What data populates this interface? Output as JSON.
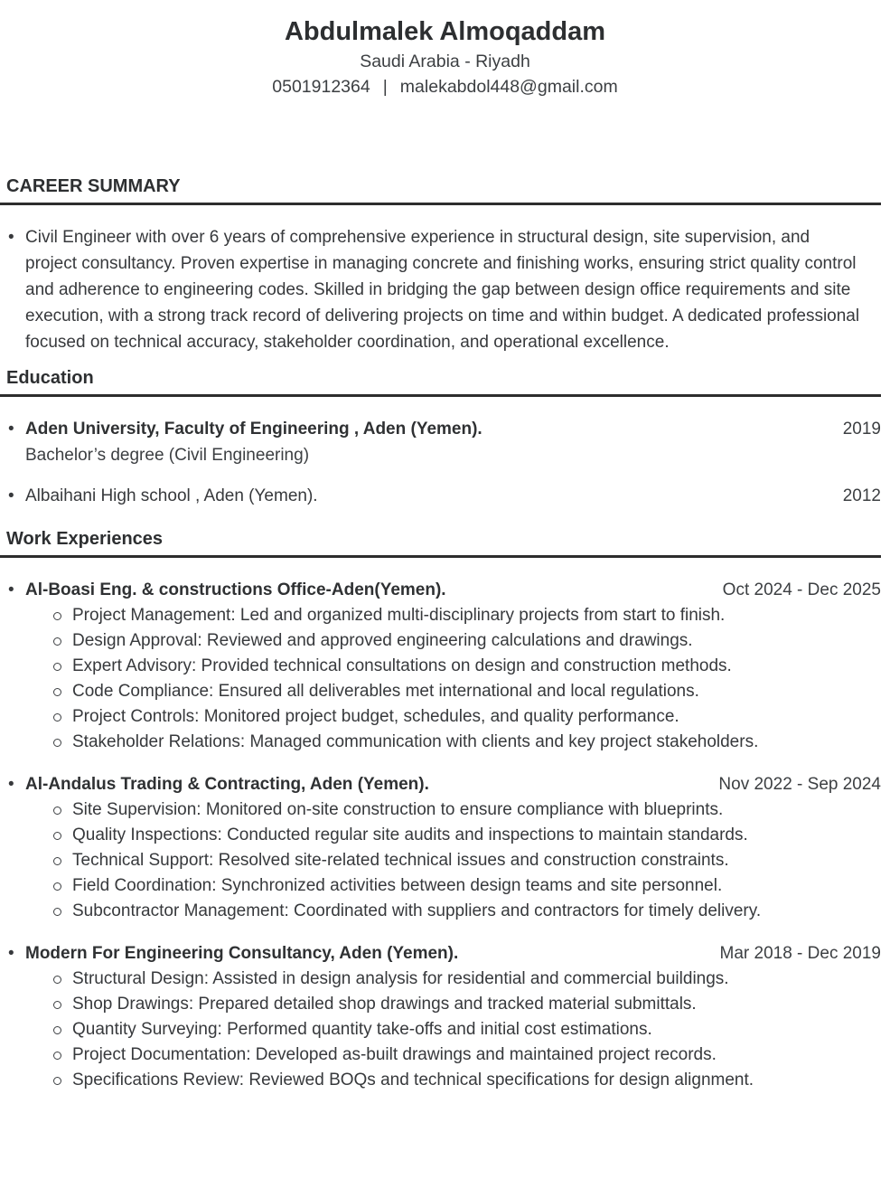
{
  "header": {
    "name": "Abdulmalek Almoqaddam",
    "location": "Saudi Arabia - Riyadh",
    "phone": "0501912364",
    "contact_separator": "|",
    "email": "malekabdol448@gmail.com"
  },
  "career_summary": {
    "heading": "CAREER SUMMARY",
    "text": "Civil Engineer with over 6 years of comprehensive experience in structural design, site supervision, and project consultancy. Proven expertise in managing concrete and finishing works, ensuring strict quality control and adherence to engineering codes. Skilled in bridging the gap between design office requirements and site execution, with a strong track record of delivering projects on time and within budget. A dedicated professional focused on technical accuracy, stakeholder coordination, and operational excellence."
  },
  "education": {
    "heading": "Education",
    "items": [
      {
        "title": "Aden University, Faculty of Engineering , Aden (Yemen).",
        "subtitle": "Bachelor’s degree (Civil Engineering)",
        "year": "2019"
      },
      {
        "title": "Albaihani High school , Aden (Yemen).",
        "subtitle": "",
        "year": "2012"
      }
    ]
  },
  "work": {
    "heading": "Work Experiences",
    "jobs": [
      {
        "company": "Al-Boasi Eng. & constructions Office-Aden(Yemen).",
        "dates": "Oct 2024 - Dec 2025",
        "bullets": [
          "Project Management: Led and organized multi-disciplinary projects from start to finish.",
          "Design Approval: Reviewed and approved engineering calculations and drawings.",
          "Expert Advisory: Provided technical consultations on design and construction methods.",
          "Code Compliance: Ensured all deliverables met international and local regulations.",
          "Project Controls: Monitored project budget, schedules, and quality performance.",
          "Stakeholder Relations: Managed communication with clients and key project stakeholders."
        ]
      },
      {
        "company": "Al-Andalus Trading & Contracting, Aden (Yemen).",
        "dates": "Nov 2022 - Sep 2024",
        "bullets": [
          "Site Supervision: Monitored on-site construction to ensure compliance with blueprints.",
          "Quality Inspections: Conducted regular site audits and inspections to maintain standards.",
          "Technical Support: Resolved site-related technical issues and construction constraints.",
          "Field Coordination: Synchronized activities between design teams and site personnel.",
          "Subcontractor Management: Coordinated with suppliers and contractors for timely delivery."
        ]
      },
      {
        "company": "Modern For Engineering Consultancy, Aden (Yemen).",
        "dates": "Mar 2018 - Dec 2019",
        "bullets": [
          "Structural Design: Assisted in design analysis for residential and commercial buildings.",
          "Shop Drawings: Prepared detailed shop drawings and tracked material submittals.",
          "Quantity Surveying: Performed quantity take-offs and initial cost estimations.",
          "Project Documentation: Developed as-built drawings and maintained project records.",
          "Specifications Review: Reviewed BOQs and technical specifications for design alignment."
        ]
      }
    ]
  },
  "colors": {
    "text": "#37393c",
    "heading": "#2d2f31",
    "rule": "#2d2d2d",
    "background": "#ffffff"
  }
}
